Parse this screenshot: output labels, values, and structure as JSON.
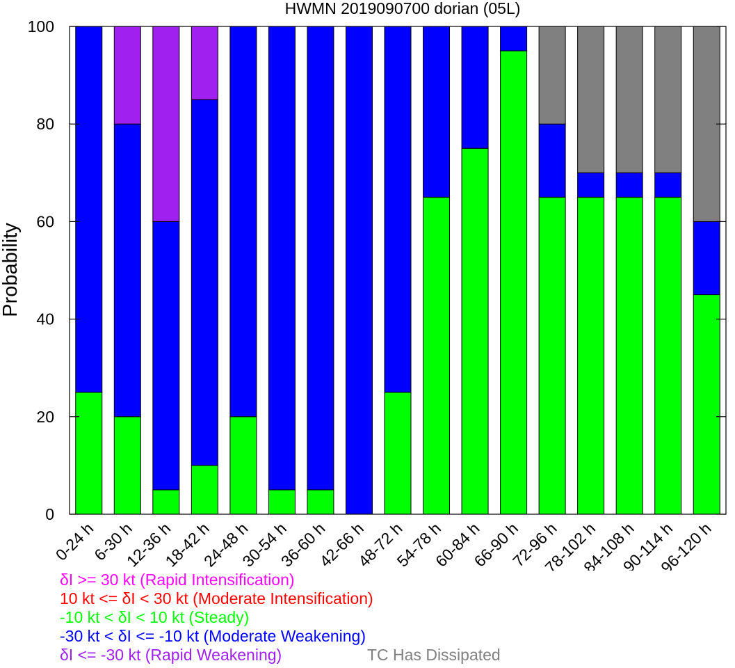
{
  "chart_data": {
    "type": "bar",
    "stacked": true,
    "title": "HWMN 2019090700 dorian (05L)",
    "ylabel": "Probability",
    "xlabel": "",
    "ylim": [
      0,
      100
    ],
    "yticks": [
      0,
      20,
      40,
      60,
      80,
      100
    ],
    "grid": false,
    "categories": [
      "0-24 h",
      "6-30 h",
      "12-36 h",
      "18-42 h",
      "24-48 h",
      "30-54 h",
      "36-60 h",
      "42-66 h",
      "48-72 h",
      "54-78 h",
      "60-84 h",
      "66-90 h",
      "72-96 h",
      "78-102 h",
      "84-108 h",
      "90-114 h",
      "96-120 h"
    ],
    "series": [
      {
        "key": "steady",
        "color": "#00ff00",
        "values": [
          25,
          20,
          5,
          10,
          20,
          5,
          5,
          0,
          25,
          65,
          75,
          95,
          65,
          65,
          65,
          65,
          45
        ]
      },
      {
        "key": "moderate_weakening",
        "color": "#0000ff",
        "values": [
          75,
          60,
          55,
          75,
          80,
          95,
          95,
          100,
          75,
          35,
          25,
          5,
          15,
          5,
          5,
          5,
          15
        ]
      },
      {
        "key": "rapid_weakening",
        "color": "#a020f0",
        "values": [
          0,
          20,
          40,
          15,
          0,
          0,
          0,
          0,
          0,
          0,
          0,
          0,
          0,
          0,
          0,
          0,
          0
        ]
      },
      {
        "key": "dissipated",
        "color": "#808080",
        "values": [
          0,
          0,
          0,
          0,
          0,
          0,
          0,
          0,
          0,
          0,
          0,
          0,
          20,
          30,
          30,
          30,
          40
        ]
      }
    ],
    "legend": {
      "placement": "bottom-left",
      "entries": [
        {
          "text": "δI >= 30 kt (Rapid Intensification)",
          "color": "#ff00ff"
        },
        {
          "text": "10 kt <= δI < 30 kt (Moderate Intensification)",
          "color": "#ff0000"
        },
        {
          "text": "-10 kt < δI < 10 kt (Steady)",
          "color": "#00ff00"
        },
        {
          "text": "-30 kt < δI <= -10 kt (Moderate Weakening)",
          "color": "#0000ff"
        },
        {
          "text": "δI <= -30 kt (Rapid Weakening)",
          "color": "#a020f0"
        }
      ],
      "extra": {
        "text": "TC Has Dissipated",
        "color": "#808080"
      }
    }
  }
}
